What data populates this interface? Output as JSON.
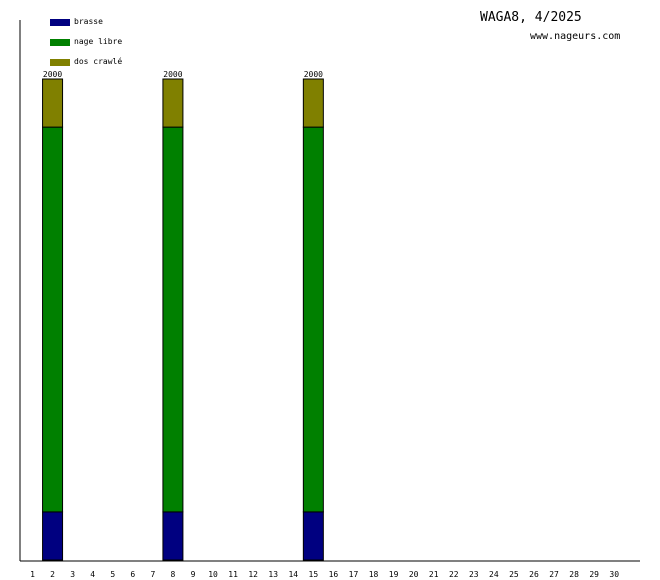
{
  "header": {
    "title": "WAGA8, 4/2025",
    "site": "www.nageurs.com"
  },
  "legend": [
    {
      "label": "brasse",
      "color": "#000080"
    },
    {
      "label": "nage libre",
      "color": "#008000"
    },
    {
      "label": "dos crawlé",
      "color": "#808000"
    }
  ],
  "chart_data": {
    "type": "bar",
    "stacked": true,
    "categories": [
      "1",
      "2",
      "3",
      "4",
      "5",
      "6",
      "7",
      "8",
      "9",
      "10",
      "11",
      "12",
      "13",
      "14",
      "15",
      "16",
      "17",
      "18",
      "19",
      "20",
      "21",
      "22",
      "23",
      "24",
      "25",
      "26",
      "27",
      "28",
      "29",
      "30"
    ],
    "series": [
      {
        "name": "brasse",
        "color": "#000080",
        "values": [
          0,
          200,
          0,
          0,
          0,
          0,
          0,
          200,
          0,
          0,
          0,
          0,
          0,
          0,
          200,
          0,
          0,
          0,
          0,
          0,
          0,
          0,
          0,
          0,
          0,
          0,
          0,
          0,
          0,
          0
        ]
      },
      {
        "name": "nage libre",
        "color": "#008000",
        "values": [
          0,
          1600,
          0,
          0,
          0,
          0,
          0,
          1600,
          0,
          0,
          0,
          0,
          0,
          0,
          1600,
          0,
          0,
          0,
          0,
          0,
          0,
          0,
          0,
          0,
          0,
          0,
          0,
          0,
          0,
          0
        ]
      },
      {
        "name": "dos crawlé",
        "color": "#808000",
        "values": [
          0,
          200,
          0,
          0,
          0,
          0,
          0,
          200,
          0,
          0,
          0,
          0,
          0,
          0,
          200,
          0,
          0,
          0,
          0,
          0,
          0,
          0,
          0,
          0,
          0,
          0,
          0,
          0,
          0,
          0
        ]
      }
    ],
    "totals_labels": [
      {
        "category": "2",
        "text": "2000"
      },
      {
        "category": "8",
        "text": "2000"
      },
      {
        "category": "15",
        "text": "2000"
      }
    ],
    "ylim": [
      0,
      2000
    ],
    "grid": false,
    "legend_position": "top-left"
  }
}
